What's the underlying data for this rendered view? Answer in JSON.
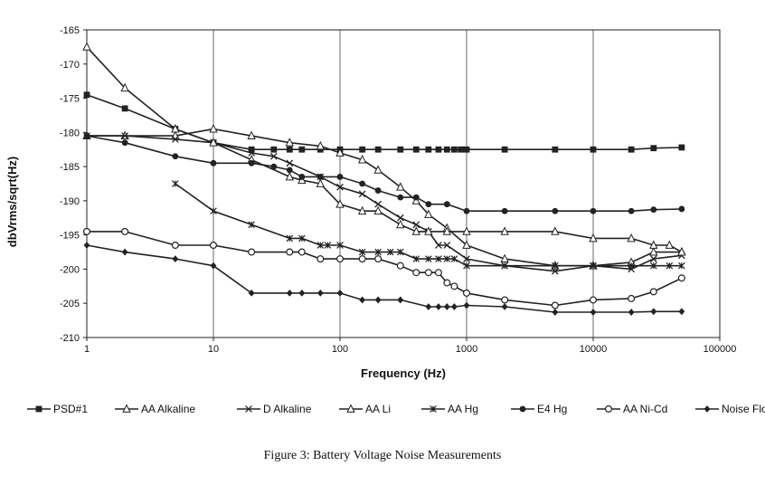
{
  "chart_data": {
    "type": "line",
    "xscale": "log",
    "xlim": [
      1,
      100000
    ],
    "ylim": [
      -210,
      -165
    ],
    "xticks": [
      "1",
      "10",
      "100",
      "1000",
      "10000",
      "100000"
    ],
    "yticks": [
      "-165",
      "-170",
      "-175",
      "-180",
      "-185",
      "-190",
      "-195",
      "-200",
      "-205",
      "-210"
    ],
    "xlabel": "Frequency (Hz)",
    "ylabel": "dbVrms/sqrt(Hz)",
    "grid": "vertical",
    "legend": "bottom",
    "series": [
      {
        "name": "PSD#1",
        "marker": "square",
        "points": [
          [
            1,
            -174.5
          ],
          [
            2,
            -176.5
          ],
          [
            5,
            -179.5
          ],
          [
            10,
            -181.5
          ],
          [
            20,
            -182.5
          ],
          [
            30,
            -182.5
          ],
          [
            40,
            -182.5
          ],
          [
            50,
            -182.5
          ],
          [
            70,
            -182.5
          ],
          [
            100,
            -182.5
          ],
          [
            150,
            -182.5
          ],
          [
            200,
            -182.5
          ],
          [
            300,
            -182.5
          ],
          [
            400,
            -182.5
          ],
          [
            500,
            -182.5
          ],
          [
            600,
            -182.5
          ],
          [
            700,
            -182.5
          ],
          [
            800,
            -182.5
          ],
          [
            900,
            -182.5
          ],
          [
            1000,
            -182.5
          ],
          [
            2000,
            -182.5
          ],
          [
            5000,
            -182.5
          ],
          [
            10000,
            -182.5
          ],
          [
            20000,
            -182.5
          ],
          [
            30000,
            -182.3
          ],
          [
            50000,
            -182.2
          ]
        ]
      },
      {
        "name": "AA Alkaline",
        "marker": "triangle",
        "points": [
          [
            1,
            -180.5
          ],
          [
            2,
            -180.5
          ],
          [
            5,
            -180.5
          ],
          [
            10,
            -179.5
          ],
          [
            20,
            -180.5
          ],
          [
            40,
            -181.5
          ],
          [
            70,
            -182
          ],
          [
            100,
            -183
          ],
          [
            150,
            -184
          ],
          [
            200,
            -185.5
          ],
          [
            300,
            -188
          ],
          [
            400,
            -190
          ],
          [
            500,
            -192
          ],
          [
            700,
            -194
          ],
          [
            1000,
            -196.5
          ],
          [
            2000,
            -198.5
          ],
          [
            5000,
            -199.5
          ],
          [
            10000,
            -199.5
          ],
          [
            20000,
            -199
          ],
          [
            30000,
            -197.5
          ],
          [
            50000,
            -197.5
          ]
        ]
      },
      {
        "name": "D Alkaline",
        "marker": "x",
        "points": [
          [
            1,
            -180.5
          ],
          [
            2,
            -180.5
          ],
          [
            5,
            -181
          ],
          [
            10,
            -181.5
          ],
          [
            20,
            -183
          ],
          [
            30,
            -183.5
          ],
          [
            40,
            -184.5
          ],
          [
            70,
            -186.5
          ],
          [
            100,
            -188
          ],
          [
            150,
            -189
          ],
          [
            200,
            -190.5
          ],
          [
            300,
            -192.5
          ],
          [
            400,
            -193.5
          ],
          [
            500,
            -194.5
          ],
          [
            600,
            -196.5
          ],
          [
            700,
            -196.5
          ],
          [
            1000,
            -198.5
          ],
          [
            2000,
            -199.5
          ],
          [
            5000,
            -200.3
          ],
          [
            10000,
            -199.5
          ],
          [
            20000,
            -200
          ],
          [
            30000,
            -198.5
          ],
          [
            50000,
            -198
          ]
        ]
      },
      {
        "name": "AA Li",
        "marker": "triangle",
        "points": [
          [
            1,
            -167.5
          ],
          [
            2,
            -173.5
          ],
          [
            5,
            -179.5
          ],
          [
            10,
            -181.5
          ],
          [
            20,
            -184
          ],
          [
            40,
            -186.5
          ],
          [
            50,
            -187
          ],
          [
            70,
            -187.5
          ],
          [
            100,
            -190.5
          ],
          [
            150,
            -191.5
          ],
          [
            200,
            -191.5
          ],
          [
            300,
            -193.5
          ],
          [
            400,
            -194.5
          ],
          [
            500,
            -194.5
          ],
          [
            700,
            -194.5
          ],
          [
            1000,
            -194.5
          ],
          [
            2000,
            -194.5
          ],
          [
            5000,
            -194.5
          ],
          [
            10000,
            -195.5
          ],
          [
            20000,
            -195.5
          ],
          [
            30000,
            -196.5
          ],
          [
            40000,
            -196.5
          ],
          [
            50000,
            -197.5
          ]
        ]
      },
      {
        "name": "AA Hg",
        "marker": "asterisk",
        "points": [
          [
            5,
            -187.5
          ],
          [
            10,
            -191.5
          ],
          [
            20,
            -193.5
          ],
          [
            40,
            -195.5
          ],
          [
            50,
            -195.5
          ],
          [
            70,
            -196.5
          ],
          [
            80,
            -196.5
          ],
          [
            100,
            -196.5
          ],
          [
            150,
            -197.5
          ],
          [
            200,
            -197.5
          ],
          [
            250,
            -197.5
          ],
          [
            300,
            -197.5
          ],
          [
            400,
            -198.5
          ],
          [
            500,
            -198.5
          ],
          [
            600,
            -198.5
          ],
          [
            700,
            -198.5
          ],
          [
            800,
            -198.5
          ],
          [
            1000,
            -199.5
          ],
          [
            2000,
            -199.5
          ],
          [
            5000,
            -199.5
          ],
          [
            10000,
            -199.5
          ],
          [
            20000,
            -199.5
          ],
          [
            30000,
            -199.5
          ],
          [
            40000,
            -199.5
          ],
          [
            50000,
            -199.5
          ]
        ]
      },
      {
        "name": "E4 Hg",
        "marker": "circle",
        "points": [
          [
            1,
            -180.5
          ],
          [
            2,
            -181.5
          ],
          [
            5,
            -183.5
          ],
          [
            10,
            -184.5
          ],
          [
            20,
            -184.5
          ],
          [
            30,
            -185
          ],
          [
            40,
            -185.5
          ],
          [
            50,
            -186.5
          ],
          [
            70,
            -186.5
          ],
          [
            100,
            -186.5
          ],
          [
            150,
            -187.5
          ],
          [
            200,
            -188.5
          ],
          [
            300,
            -189.5
          ],
          [
            400,
            -189.5
          ],
          [
            500,
            -190.5
          ],
          [
            700,
            -190.5
          ],
          [
            1000,
            -191.5
          ],
          [
            2000,
            -191.5
          ],
          [
            5000,
            -191.5
          ],
          [
            10000,
            -191.5
          ],
          [
            20000,
            -191.5
          ],
          [
            30000,
            -191.3
          ],
          [
            50000,
            -191.2
          ]
        ]
      },
      {
        "name": "AA Ni-Cd",
        "marker": "circle-open",
        "points": [
          [
            1,
            -194.5
          ],
          [
            2,
            -194.5
          ],
          [
            5,
            -196.5
          ],
          [
            10,
            -196.5
          ],
          [
            20,
            -197.5
          ],
          [
            40,
            -197.5
          ],
          [
            50,
            -197.5
          ],
          [
            70,
            -198.5
          ],
          [
            100,
            -198.5
          ],
          [
            150,
            -198.5
          ],
          [
            200,
            -198.5
          ],
          [
            300,
            -199.5
          ],
          [
            400,
            -200.5
          ],
          [
            500,
            -200.5
          ],
          [
            600,
            -200.5
          ],
          [
            700,
            -202
          ],
          [
            800,
            -202.5
          ],
          [
            1000,
            -203.5
          ],
          [
            2000,
            -204.5
          ],
          [
            5000,
            -205.3
          ],
          [
            10000,
            -204.5
          ],
          [
            20000,
            -204.3
          ],
          [
            30000,
            -203.3
          ],
          [
            50000,
            -201.3
          ]
        ]
      },
      {
        "name": "Noise Floor",
        "marker": "diamond",
        "points": [
          [
            1,
            -196.5
          ],
          [
            2,
            -197.5
          ],
          [
            5,
            -198.5
          ],
          [
            10,
            -199.5
          ],
          [
            20,
            -203.5
          ],
          [
            40,
            -203.5
          ],
          [
            50,
            -203.5
          ],
          [
            70,
            -203.5
          ],
          [
            100,
            -203.5
          ],
          [
            150,
            -204.5
          ],
          [
            200,
            -204.5
          ],
          [
            300,
            -204.5
          ],
          [
            500,
            -205.5
          ],
          [
            600,
            -205.5
          ],
          [
            700,
            -205.5
          ],
          [
            800,
            -205.5
          ],
          [
            1000,
            -205.3
          ],
          [
            2000,
            -205.5
          ],
          [
            5000,
            -206.3
          ],
          [
            10000,
            -206.3
          ],
          [
            20000,
            -206.3
          ],
          [
            30000,
            -206.2
          ],
          [
            50000,
            -206.2
          ]
        ]
      }
    ]
  },
  "caption": "Figure 3: Battery Voltage Noise Measurements"
}
